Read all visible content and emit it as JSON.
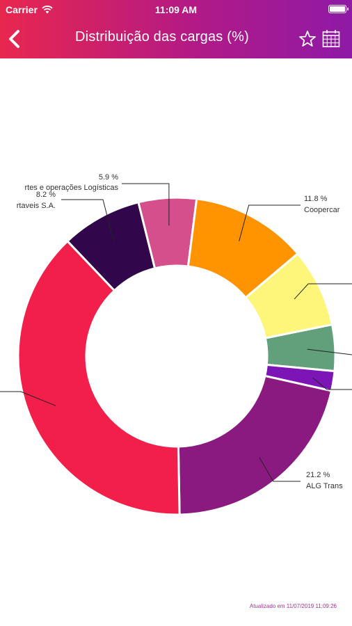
{
  "status_bar": {
    "carrier": "Carrier",
    "time": "11:09 AM"
  },
  "header": {
    "title": "Distribuição das cargas (%)"
  },
  "icons": {
    "back": "chevron-left-icon",
    "favorite": "star-icon",
    "calendar": "calendar-icon",
    "wifi": "wifi-icon",
    "battery": "battery-icon"
  },
  "colors": {
    "header_start": "#e8274e",
    "header_end": "#8e1aa6",
    "updated_text": "#a0358f"
  },
  "chart_data": {
    "type": "pie",
    "variant": "donut",
    "slices": [
      {
        "value": 5.9,
        "color": "#d64f8d",
        "pct_label": "5.9 %",
        "name": ""
      },
      {
        "value": 11.8,
        "color": "#ff9400",
        "pct_label": "11.8 %",
        "name": "Coopercar"
      },
      {
        "value": 8.0,
        "color": "#fdf67a",
        "pct_label": "",
        "name": ""
      },
      {
        "value": 4.7,
        "color": "#62a07c",
        "pct_label": "",
        "name": ""
      },
      {
        "value": 2.0,
        "color": "#7d14b6",
        "pct_label": "",
        "name": ""
      },
      {
        "value": 21.2,
        "color": "#8b1a80",
        "pct_label": "21.2 %",
        "name": "ALG Trans"
      },
      {
        "value": 38.2,
        "color": "#f21f4a",
        "pct_label": "",
        "name": ""
      },
      {
        "value": 8.2,
        "color": "#32064a",
        "pct_label": "8.2 %",
        "name": "rtaveis S.A."
      }
    ],
    "extra_labels": [
      "rtes e operações Logísticas"
    ]
  },
  "footer": {
    "updated": "Atualizado em 11/07/2019 11:09:26"
  }
}
